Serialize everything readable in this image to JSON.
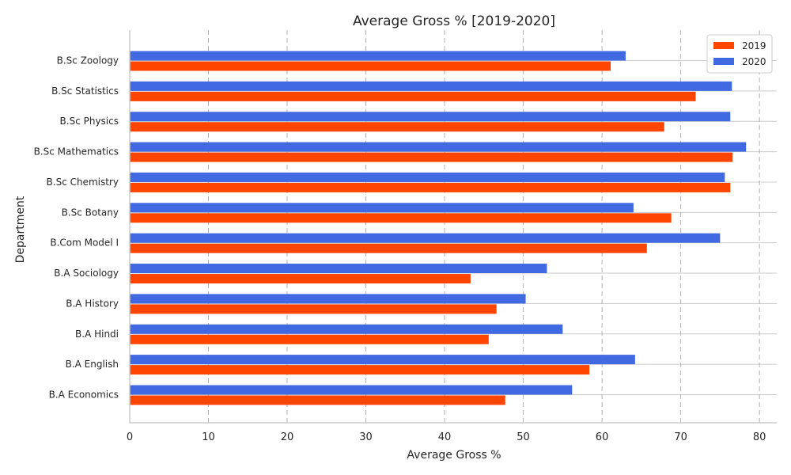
{
  "chart_data": {
    "type": "bar",
    "orientation": "horizontal",
    "title": "Average Gross % [2019-2020]",
    "xlabel": "Average Gross %",
    "ylabel": "Department",
    "xlim": [
      0,
      82.2
    ],
    "xticks": [
      0,
      10,
      20,
      30,
      40,
      50,
      60,
      70,
      80
    ],
    "grid": true,
    "legend_position": "top-right",
    "categories": [
      "B.A Economics",
      "B.A English",
      "B.A Hindi",
      "B.A History",
      "B.A Sociology",
      "B.Com Model I",
      "B.Sc Botany",
      "B.Sc Chemistry",
      "B.Sc Mathematics",
      "B.Sc Physics",
      "B.Sc Statistics",
      "B.Sc Zoology"
    ],
    "series": [
      {
        "name": "2019",
        "color": "#ff4500",
        "values": [
          47.7,
          58.4,
          45.6,
          46.6,
          43.3,
          65.7,
          68.8,
          76.3,
          76.6,
          67.9,
          71.9,
          61.1
        ]
      },
      {
        "name": "2020",
        "color": "#4169e1",
        "values": [
          56.2,
          64.2,
          55.0,
          50.3,
          53.0,
          75.0,
          64.0,
          75.6,
          78.3,
          76.3,
          76.5,
          63.0
        ]
      }
    ]
  }
}
